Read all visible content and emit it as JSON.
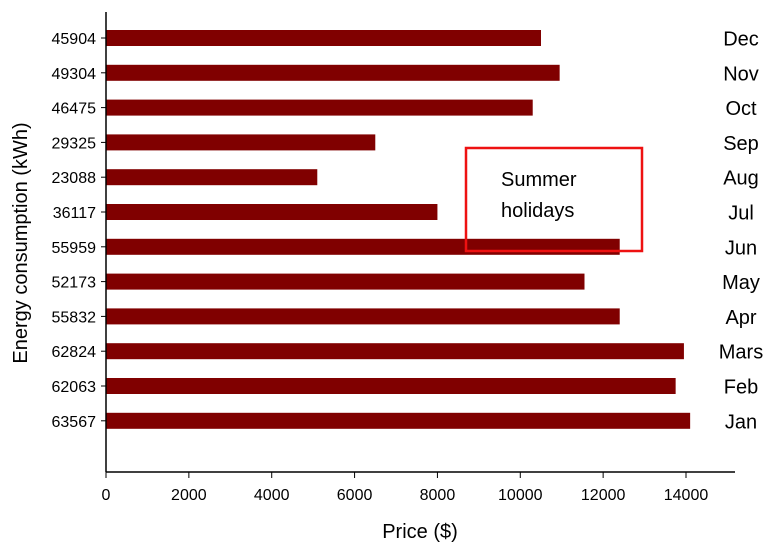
{
  "chart_data": {
    "type": "bar",
    "orientation": "horizontal",
    "xlabel": "Price ($)",
    "ylabel": "Energy consumption (kWh)",
    "xlim": [
      0,
      15200
    ],
    "xticks": [
      0,
      2000,
      4000,
      6000,
      8000,
      10000,
      12000,
      14000
    ],
    "bar_color": "#800000",
    "grid": false,
    "categories": [
      "Dec",
      "Nov",
      "Oct",
      "Sep",
      "Aug",
      "Jul",
      "Jun",
      "May",
      "Apr",
      "Mars",
      "Feb",
      "Jan"
    ],
    "energy_labels": [
      "45904",
      "49304",
      "46475",
      "29325",
      "23088",
      "36117",
      "55959",
      "52173",
      "55832",
      "62824",
      "62063",
      "63567"
    ],
    "values": [
      10500,
      10950,
      10300,
      6500,
      5100,
      8000,
      12400,
      11550,
      12400,
      13950,
      13750,
      14100
    ],
    "annotation": {
      "text_line1": "Summer",
      "text_line2": "holidays",
      "box_color": "#ee1111"
    }
  }
}
